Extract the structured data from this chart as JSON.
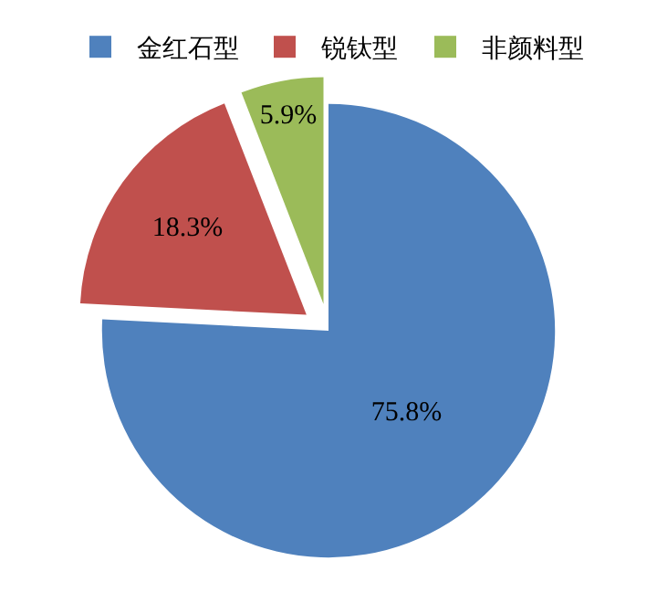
{
  "chart_data": {
    "type": "pie",
    "categories": [
      "金红石型",
      "锐钛型",
      "非颜料型"
    ],
    "values": [
      75.8,
      18.3,
      5.9
    ],
    "colors": [
      "#4f81bd",
      "#c0504d",
      "#9bbb59"
    ],
    "value_labels": [
      "75.8%",
      "18.3%",
      "5.9%"
    ],
    "legend": "top"
  }
}
